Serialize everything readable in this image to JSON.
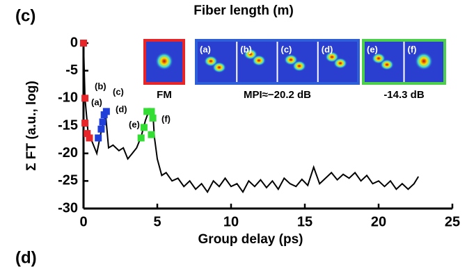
{
  "chart_data": {
    "type": "line",
    "title": "Fiber length (m)",
    "xlabel": "Group delay (ps)",
    "ylabel": "Σ FT (a.u., log)",
    "panel_labels": [
      "(c)",
      "(d)"
    ],
    "xlim": [
      0,
      25
    ],
    "xticks": [
      0,
      5,
      10,
      15,
      20,
      25
    ],
    "ylim": [
      -30,
      0
    ],
    "yticks": [
      0,
      -5,
      -10,
      -15,
      -20,
      -25,
      -30
    ],
    "series": [
      {
        "color": "#000000",
        "marker": "none",
        "x": [
          0,
          0.1,
          0.3,
          0.6,
          0.9,
          1.2,
          1.5,
          1.7,
          2.0,
          2.4,
          2.7,
          3.0,
          3.3,
          3.6,
          3.9,
          4.2,
          4.4,
          4.7,
          4.8,
          5.0,
          5.3,
          5.6,
          6.0,
          6.4,
          6.8,
          7.2,
          7.6,
          8.0,
          8.4,
          8.8,
          9.2,
          9.6,
          10.0,
          10.4,
          10.8,
          11.2,
          11.6,
          12.0,
          12.4,
          12.8,
          13.2,
          13.6,
          14.0,
          14.4,
          14.8,
          15.2,
          15.6,
          16.0,
          16.4,
          16.8,
          17.2,
          17.6,
          18.0,
          18.4,
          18.8,
          19.2,
          19.6,
          20.0,
          20.4,
          20.8,
          21.2,
          21.6,
          22.0,
          22.4,
          22.7
        ],
        "values": [
          0,
          -10,
          -16,
          -18,
          -20,
          -16,
          -13,
          -19,
          -18.5,
          -19.5,
          -19,
          -21,
          -20,
          -19,
          -17,
          -14,
          -12.5,
          -12.5,
          -17,
          -21,
          -24,
          -23.5,
          -25,
          -24.5,
          -26,
          -25,
          -26.5,
          -25.5,
          -27,
          -25,
          -26,
          -24.5,
          -26,
          -25.5,
          -27,
          -25,
          -26,
          -24.8,
          -26.2,
          -25,
          -26.5,
          -24.5,
          -25.5,
          -26,
          -24.7,
          -25.8,
          -22.5,
          -25.5,
          -24.5,
          -23.5,
          -24.8,
          -23.8,
          -24.5,
          -23.5,
          -25,
          -24,
          -25.5,
          -25,
          -26,
          -25,
          -26.5,
          -25.5,
          -26.5,
          -25.5,
          -24.2
        ]
      },
      {
        "color": "#e8262a",
        "marker": "square",
        "x": [
          0,
          0.1,
          0.1,
          0.25,
          0.4
        ],
        "values": [
          0,
          -10,
          -14.5,
          -16.4,
          -17.2
        ]
      },
      {
        "color": "#1f3fd8",
        "marker": "square",
        "x": [
          1.0,
          1.2,
          1.3,
          1.4,
          1.55
        ],
        "values": [
          -17.2,
          -15.6,
          -14.3,
          -13,
          -12.4
        ]
      },
      {
        "color": "#33dd33",
        "marker": "square",
        "x": [
          3.9,
          4.1,
          4.3,
          4.6,
          4.7,
          4.6
        ],
        "values": [
          -17.2,
          -15.3,
          -12.4,
          -12.4,
          -13.6,
          -16.6
        ]
      }
    ],
    "annotations": [
      "(a)",
      "(b)",
      "(c)",
      "(d)",
      "(e)",
      "(f)"
    ],
    "insets": [
      {
        "label": "FM",
        "color": "#e8262a",
        "panels": []
      },
      {
        "label": "MPI≈−20.2 dB",
        "color": "#2f5fd8",
        "panels": [
          "(a)",
          "(b)",
          "(c)",
          "(d)"
        ]
      },
      {
        "label": "-14.3 dB",
        "color": "#4cd04c",
        "panels": [
          "(e)",
          "(f)"
        ]
      }
    ]
  }
}
